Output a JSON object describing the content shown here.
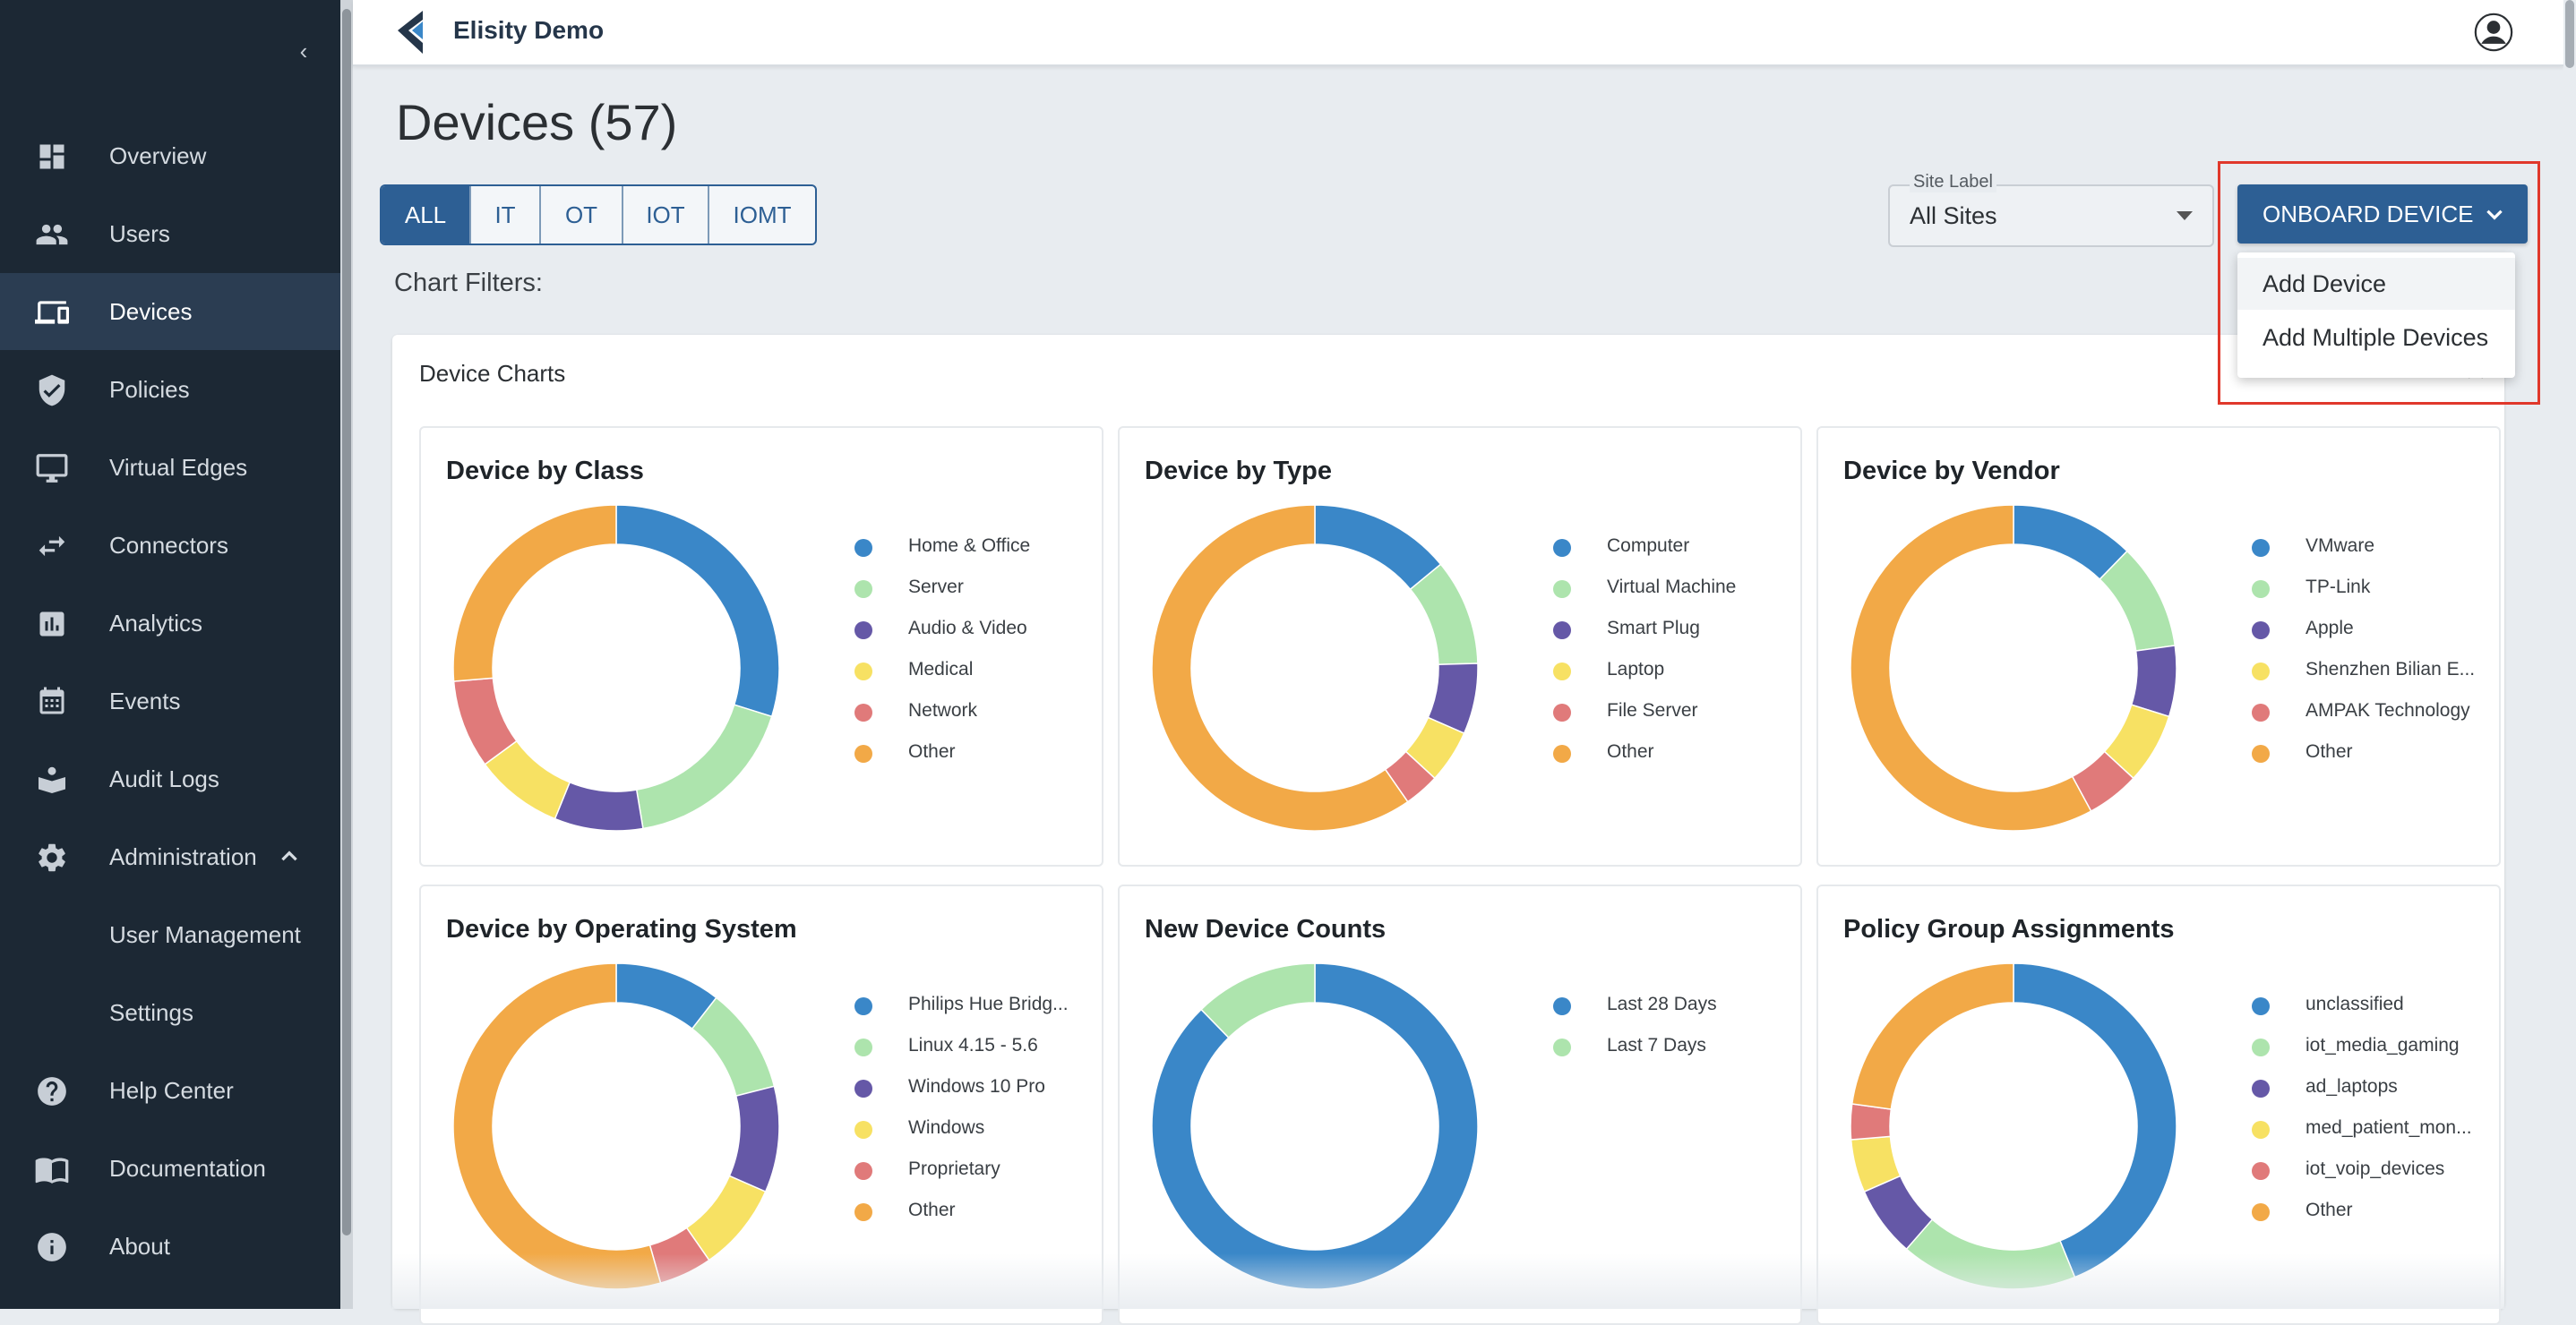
{
  "app": {
    "brand": "Elisity Demo"
  },
  "sidebar": {
    "collapse_icon": "chevron-left-icon",
    "items": [
      {
        "key": "overview",
        "label": "Overview",
        "icon": "dashboard-icon"
      },
      {
        "key": "users",
        "label": "Users",
        "icon": "users-icon"
      },
      {
        "key": "devices",
        "label": "Devices",
        "icon": "devices-icon",
        "active": true
      },
      {
        "key": "policies",
        "label": "Policies",
        "icon": "shield-check-icon"
      },
      {
        "key": "virtual-edges",
        "label": "Virtual Edges",
        "icon": "monitor-icon"
      },
      {
        "key": "connectors",
        "label": "Connectors",
        "icon": "swap-arrows-icon"
      },
      {
        "key": "analytics",
        "label": "Analytics",
        "icon": "bar-chart-icon"
      },
      {
        "key": "events",
        "label": "Events",
        "icon": "calendar-icon"
      },
      {
        "key": "audit-logs",
        "label": "Audit Logs",
        "icon": "person-box-icon"
      },
      {
        "key": "administration",
        "label": "Administration",
        "icon": "gear-icon"
      },
      {
        "key": "user-management",
        "label": "User Management"
      },
      {
        "key": "settings",
        "label": "Settings"
      },
      {
        "key": "help-center",
        "label": "Help Center",
        "icon": "help-circle-icon"
      },
      {
        "key": "documentation",
        "label": "Documentation",
        "icon": "book-icon"
      },
      {
        "key": "about",
        "label": "About",
        "icon": "info-icon"
      }
    ]
  },
  "page": {
    "title": "Devices (57)",
    "tabs": [
      "ALL",
      "IT",
      "OT",
      "IOT",
      "IOMT"
    ],
    "active_tab": "ALL",
    "chart_filters_label": "Chart Filters:",
    "site_select": {
      "label": "Site Label",
      "value": "All Sites"
    },
    "onboard_button": "ONBOARD DEVICE",
    "onboard_menu": [
      "Add Device",
      "Add Multiple Devices"
    ],
    "charts_card_title": "Device Charts"
  },
  "colors": {
    "accent": "#2d5f94",
    "highlight": "#e0382b",
    "series": [
      "#3a87c8",
      "#ade4ad",
      "#6558a7",
      "#f7e163",
      "#e07a7a",
      "#f2a947"
    ]
  },
  "chart_data": [
    {
      "type": "pie",
      "title": "Device by Class",
      "categories": [
        "Home & Office",
        "Server",
        "Audio & Video",
        "Medical",
        "Network",
        "Other"
      ],
      "values": [
        17,
        10,
        5,
        5,
        5,
        15
      ]
    },
    {
      "type": "pie",
      "title": "Device by Type",
      "categories": [
        "Computer",
        "Virtual Machine",
        "Smart Plug",
        "Laptop",
        "File Server",
        "Other"
      ],
      "values": [
        8,
        6,
        4,
        3,
        2,
        34
      ]
    },
    {
      "type": "pie",
      "title": "Device by Vendor",
      "categories": [
        "VMware",
        "TP-Link",
        "Apple",
        "Shenzhen Bilian E...",
        "AMPAK Technology",
        "Other"
      ],
      "values": [
        7,
        6,
        4,
        4,
        3,
        33
      ]
    },
    {
      "type": "pie",
      "title": "Device by Operating System",
      "categories": [
        "Philips Hue Bridg...",
        "Linux 4.15 - 5.6",
        "Windows 10 Pro",
        "Windows",
        "Proprietary",
        "Other"
      ],
      "values": [
        6,
        6,
        6,
        5,
        3,
        31
      ]
    },
    {
      "type": "pie",
      "title": "New Device Counts",
      "categories": [
        "Last 28 Days",
        "Last 7 Days"
      ],
      "values": [
        50,
        7
      ]
    },
    {
      "type": "pie",
      "title": "Policy Group Assignments",
      "categories": [
        "unclassified",
        "iot_media_gaming",
        "ad_laptops",
        "med_patient_mon...",
        "iot_voip_devices",
        "Other"
      ],
      "values": [
        25,
        10,
        4,
        3,
        2,
        13
      ]
    }
  ]
}
